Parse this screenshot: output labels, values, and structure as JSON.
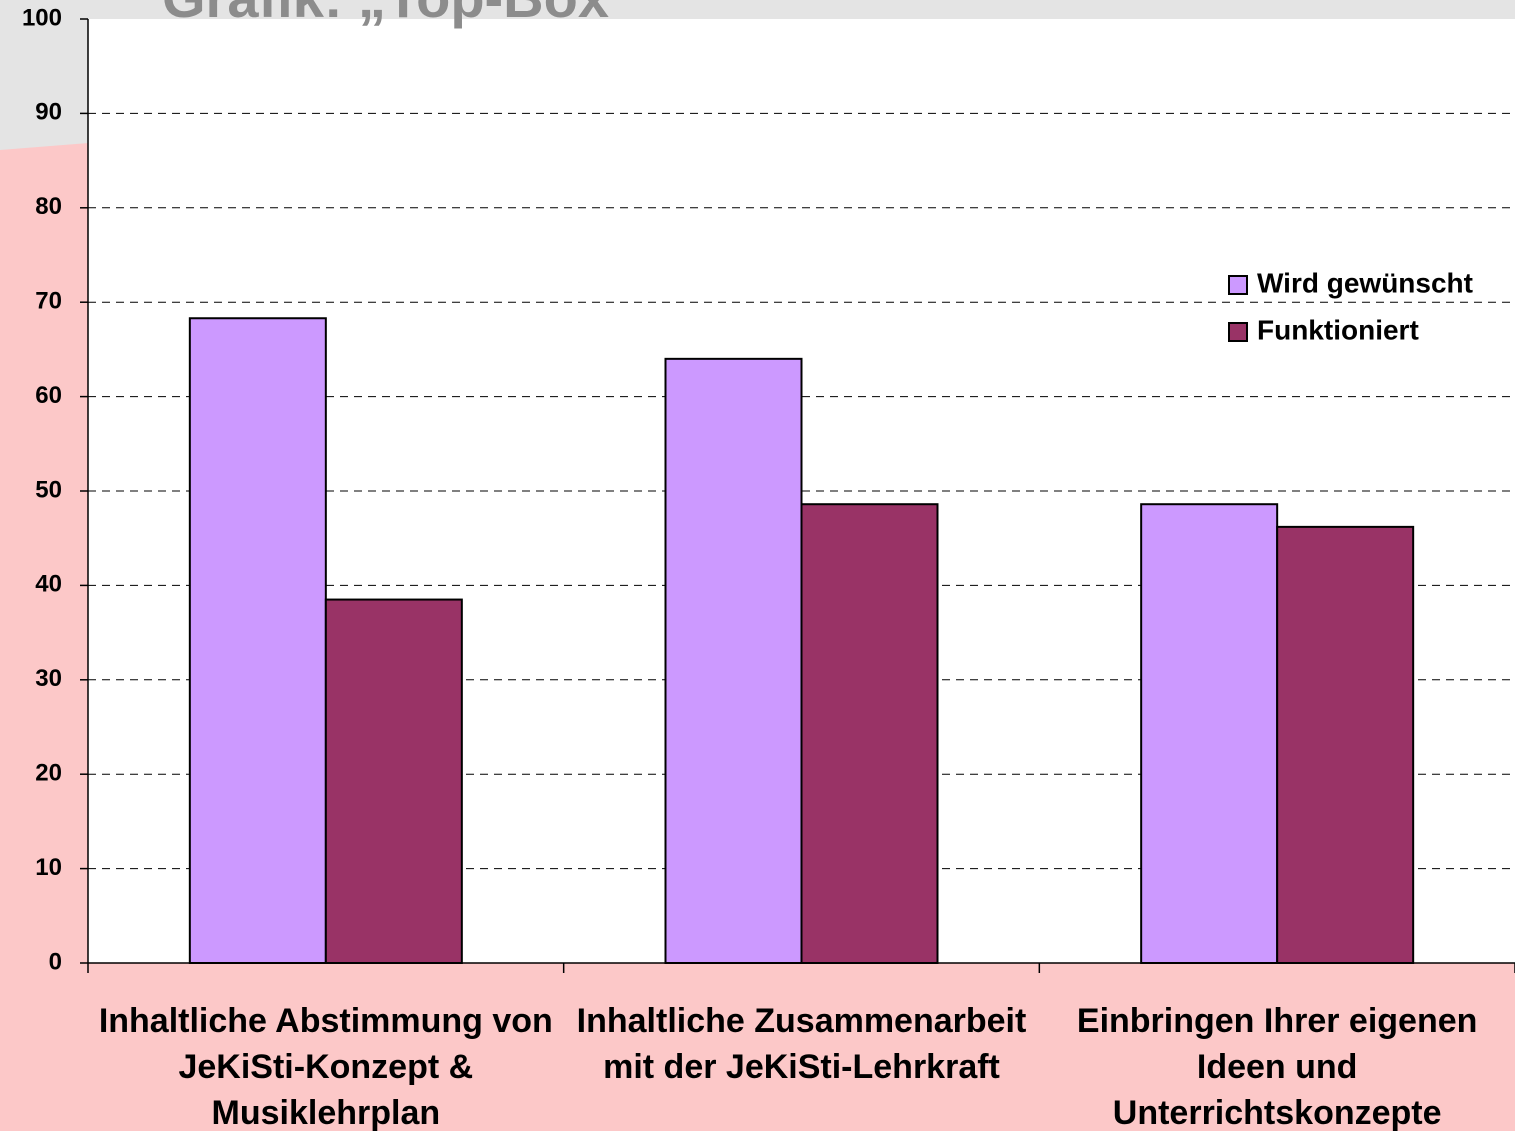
{
  "chart_data": {
    "type": "bar",
    "title": "Grafik: „Top-Box",
    "categories": [
      "Inhaltliche Abstimmung von JeKiSti-Konzept & Musiklehrplan",
      "Inhaltliche Zusammenarbeit mit der JeKiSti-Lehrkraft",
      "Einbringen Ihrer eigenen Ideen und Unterrichtskonzepte"
    ],
    "series": [
      {
        "name": "Wird gewünscht",
        "color": "#cc99ff",
        "values": [
          68.3,
          64.0,
          48.6
        ]
      },
      {
        "name": "Funktioniert",
        "color": "#993366",
        "values": [
          38.5,
          48.6,
          46.2
        ]
      }
    ],
    "ylim": [
      0,
      100
    ],
    "yticks": [
      0,
      10,
      20,
      30,
      40,
      50,
      60,
      70,
      80,
      90,
      100
    ],
    "grid": true,
    "legend": "right"
  }
}
